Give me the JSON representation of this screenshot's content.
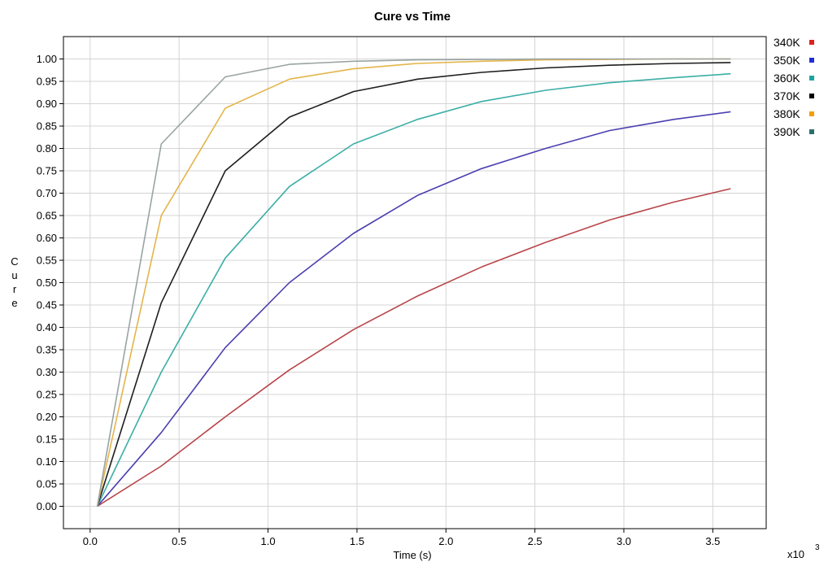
{
  "chart_data": {
    "type": "line",
    "title": "Cure vs Time",
    "xlabel": "Time (s)",
    "ylabel": "Cure",
    "x_multiplier": "x10",
    "x_multiplier_exp": "3",
    "xlim": [
      -0.15,
      3.8
    ],
    "ylim": [
      -0.05,
      1.05
    ],
    "xticks": [
      "0.0",
      "0.5",
      "1.0",
      "1.5",
      "2.0",
      "2.5",
      "3.0",
      "3.5"
    ],
    "yticks": [
      "0.00",
      "0.05",
      "0.10",
      "0.15",
      "0.20",
      "0.25",
      "0.30",
      "0.35",
      "0.40",
      "0.45",
      "0.50",
      "0.55",
      "0.60",
      "0.65",
      "0.70",
      "0.75",
      "0.80",
      "0.85",
      "0.90",
      "0.95",
      "1.00"
    ],
    "grid": true,
    "legend_position": "right-top",
    "x": [
      0.04,
      0.4,
      0.76,
      1.12,
      1.48,
      1.84,
      2.2,
      2.56,
      2.92,
      3.28,
      3.6
    ],
    "series": [
      {
        "name": "340K",
        "legend_color": "#e0201c",
        "line_color": "#b8454a",
        "values": [
          0.0,
          0.09,
          0.2,
          0.305,
          0.395,
          0.47,
          0.535,
          0.59,
          0.64,
          0.68,
          0.71
        ]
      },
      {
        "name": "350K",
        "legend_color": "#1f2ed8",
        "line_color": "#4a3fb0",
        "values": [
          0.0,
          0.165,
          0.355,
          0.5,
          0.61,
          0.695,
          0.755,
          0.8,
          0.84,
          0.865,
          0.882
        ]
      },
      {
        "name": "360K",
        "legend_color": "#1aa59d",
        "line_color": "#3aaea6",
        "values": [
          0.0,
          0.3,
          0.555,
          0.715,
          0.81,
          0.865,
          0.905,
          0.93,
          0.947,
          0.958,
          0.967
        ]
      },
      {
        "name": "370K",
        "legend_color": "#000000",
        "line_color": "#1e1e1e",
        "values": [
          0.0,
          0.455,
          0.75,
          0.87,
          0.927,
          0.955,
          0.97,
          0.98,
          0.986,
          0.99,
          0.992
        ]
      },
      {
        "name": "380K",
        "legend_color": "#f0a000",
        "line_color": "#e3b54a",
        "values": [
          0.0,
          0.65,
          0.89,
          0.955,
          0.978,
          0.99,
          0.995,
          0.998,
          0.999,
          1.0,
          1.0
        ]
      },
      {
        "name": "390K",
        "legend_color": "#2a6f6a",
        "line_color": "#9aa3a3",
        "values": [
          0.0,
          0.81,
          0.96,
          0.988,
          0.995,
          0.998,
          0.999,
          1.0,
          1.0,
          1.0,
          1.0
        ]
      }
    ]
  }
}
